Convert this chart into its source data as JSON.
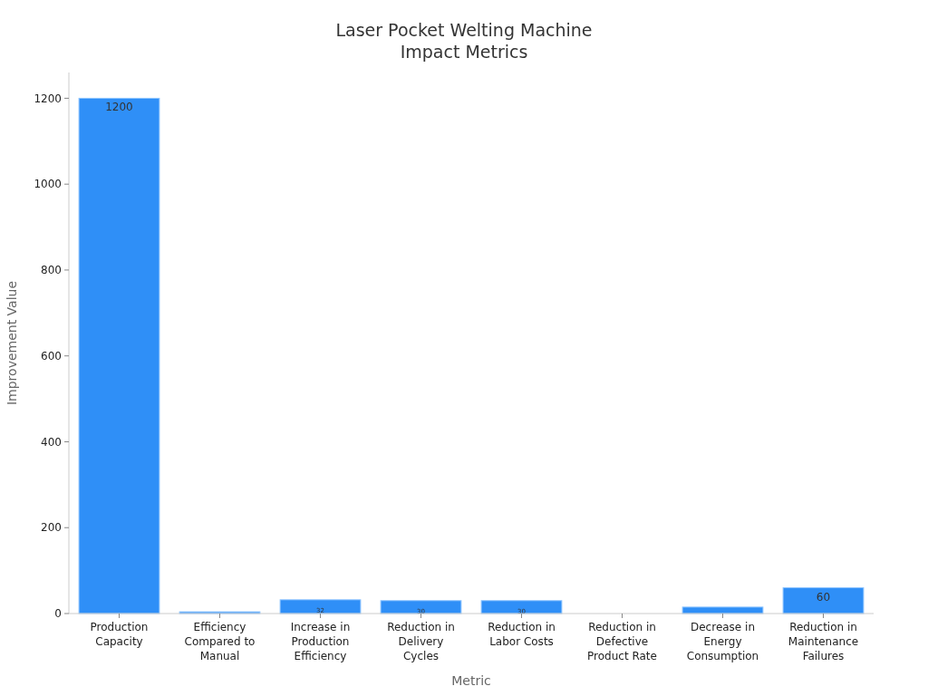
{
  "chart_data": {
    "type": "bar",
    "title": "Laser Pocket Welting Machine\nImpact Metrics",
    "xlabel": "Metric",
    "ylabel": "Improvement Value",
    "categories": [
      "Production\nCapacity",
      "Efficiency\nCompared to\nManual",
      "Increase in\nProduction\nEfficiency",
      "Reduction in\nDelivery\nCycles",
      "Reduction in\nLabor Costs",
      "Reduction in\nDefective\nProduct Rate",
      "Decrease in\nEnergy\nConsumption",
      "Reduction in\nMaintenance\nFailures"
    ],
    "values": [
      1200,
      4,
      32,
      30,
      30,
      0,
      15,
      60
    ],
    "value_labels": [
      "1200",
      null,
      "32",
      "30",
      "30",
      null,
      null,
      "60"
    ],
    "color": "#2f8ff7",
    "ylim": [
      0,
      1260
    ],
    "yticks": [
      0,
      200,
      400,
      600,
      800,
      1000,
      1200
    ],
    "grid": false
  }
}
